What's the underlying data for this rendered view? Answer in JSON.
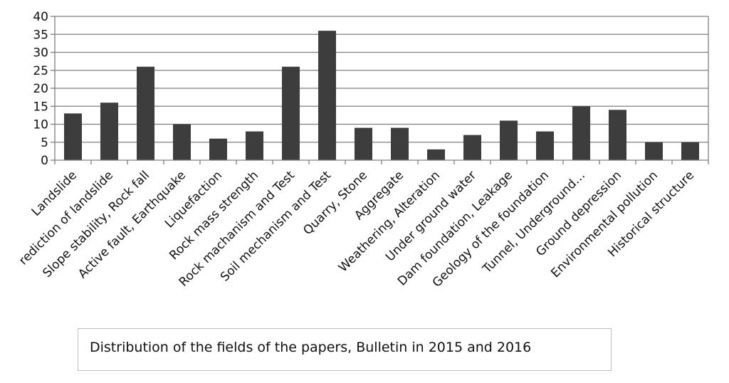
{
  "caption": "Distribution of the fields of the papers, Bulletin in 2015 and 2016",
  "colors": {
    "bar": "#3d3d3d",
    "grid": "#7f7f7f",
    "axis": "#7f7f7f"
  },
  "chart_data": {
    "type": "bar",
    "title": "",
    "xlabel": "",
    "ylabel": "",
    "ylim": [
      0,
      40
    ],
    "yticks": [
      0,
      5,
      10,
      15,
      20,
      25,
      30,
      35,
      40
    ],
    "grid": true,
    "categories": [
      "Landslide",
      "rediction of landslide",
      "Slope stability, Rock fall",
      "Active fault, Earthquake",
      "Liquefaction",
      "Rock mass strength",
      "Rock machanism and Test",
      "Soil mechanism and Test",
      "Quarry, Stone",
      "Aggregate",
      "Weathering, Alteration",
      "Under ground water",
      "Dam foundation, Leakage",
      "Geology of the foundation",
      "Tunnel, Underground…",
      "Ground depression",
      "Environmental pollution",
      "Historical structure"
    ],
    "values": [
      13,
      16,
      26,
      10,
      6,
      8,
      26,
      36,
      9,
      9,
      3,
      7,
      11,
      8,
      15,
      14,
      5,
      5
    ]
  }
}
